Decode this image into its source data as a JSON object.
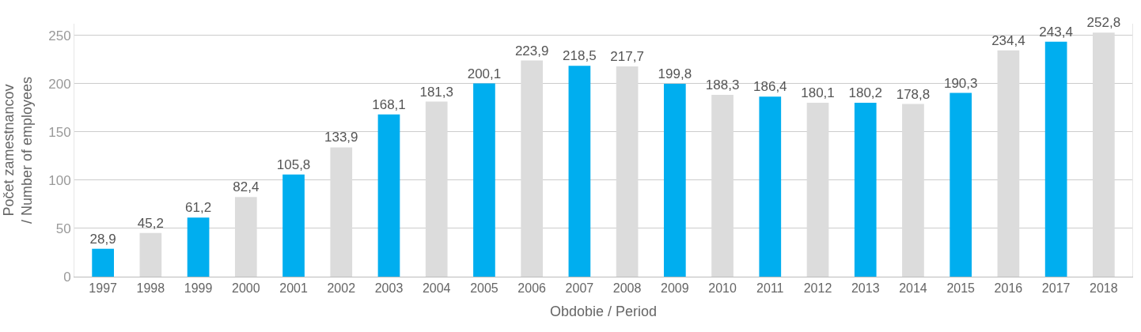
{
  "chart_data": {
    "type": "bar",
    "categories": [
      "1997",
      "1998",
      "1999",
      "2000",
      "2001",
      "2002",
      "2003",
      "2004",
      "2005",
      "2006",
      "2007",
      "2008",
      "2009",
      "2010",
      "2011",
      "2012",
      "2013",
      "2014",
      "2015",
      "2016",
      "2017",
      "2018"
    ],
    "values": [
      28.9,
      45.2,
      61.2,
      82.4,
      105.8,
      133.9,
      168.1,
      181.3,
      200.1,
      223.9,
      218.5,
      217.7,
      199.8,
      188.3,
      186.4,
      180.1,
      180.2,
      178.8,
      190.3,
      234.4,
      243.4,
      252.8
    ],
    "colors": [
      "#00aeef",
      "#dcdcdc",
      "#00aeef",
      "#dcdcdc",
      "#00aeef",
      "#dcdcdc",
      "#00aeef",
      "#dcdcdc",
      "#00aeef",
      "#dcdcdc",
      "#00aeef",
      "#dcdcdc",
      "#00aeef",
      "#dcdcdc",
      "#00aeef",
      "#dcdcdc",
      "#00aeef",
      "#dcdcdc",
      "#00aeef",
      "#dcdcdc",
      "#00aeef",
      "#dcdcdc"
    ],
    "xlabel": "Obdobie / Period",
    "ylabel": "Počet zamestnancov / Number of employees",
    "ylim": [
      0,
      262
    ],
    "yticks": [
      0,
      50,
      100,
      150,
      200,
      250
    ],
    "grid": "y",
    "value_labels": [
      "28,9",
      "45,2",
      "61,2",
      "82,4",
      "105,8",
      "133,9",
      "168,1",
      "181,3",
      "200,1",
      "223,9",
      "218,5",
      "217,7",
      "199,8",
      "188,3",
      "186,4",
      "180,1",
      "180,2",
      "178,8",
      "190,3",
      "234,4",
      "243,4",
      "252,8"
    ]
  }
}
